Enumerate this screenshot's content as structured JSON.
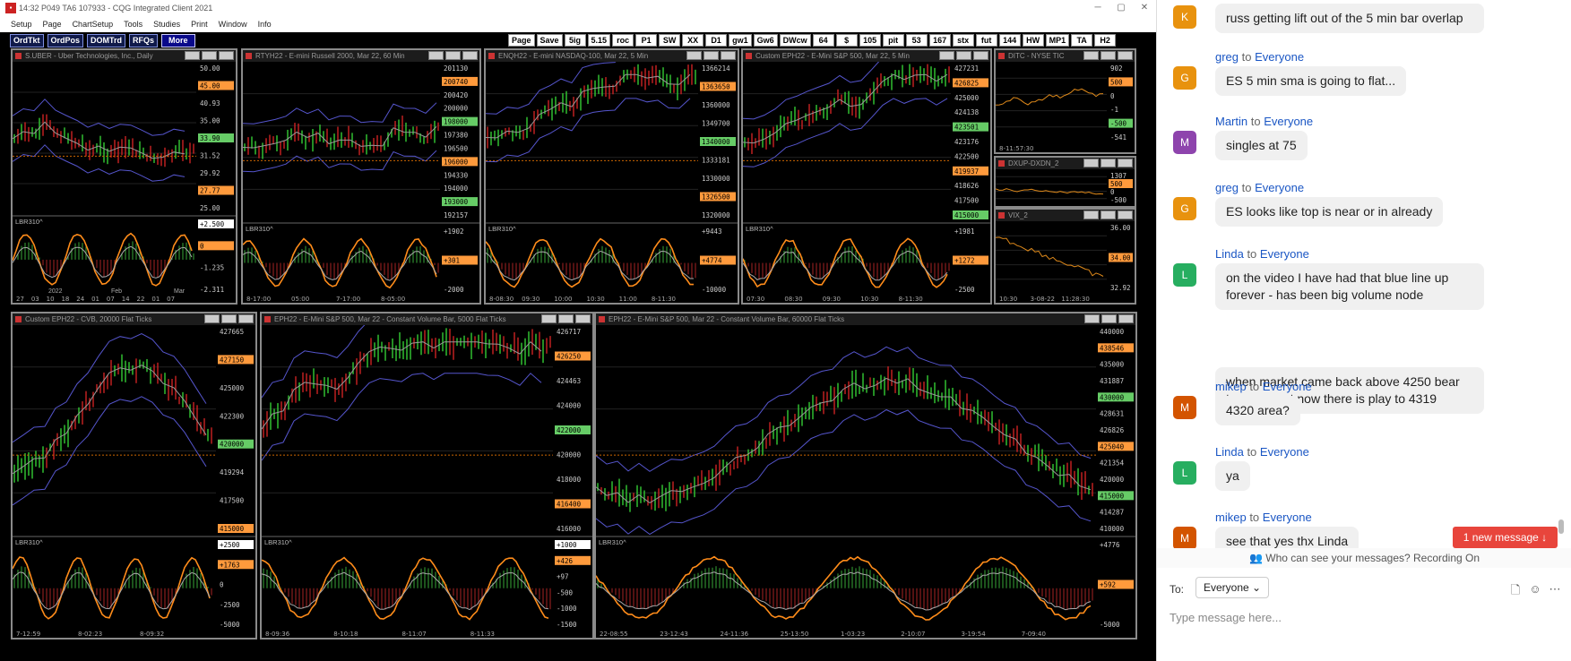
{
  "window": {
    "title": "14:32   P049 TA6   107933 - CQG Integrated Client 2021",
    "controls": [
      "─",
      "▢",
      "✕"
    ]
  },
  "menu": [
    "Setup",
    "Page",
    "ChartSetup",
    "Tools",
    "Studies",
    "Print",
    "Window",
    "Info"
  ],
  "toolbar_left": [
    "OrdTkt",
    "OrdPos",
    "DOMTrd",
    "RFQs",
    "More"
  ],
  "toolbar_right": [
    "Page",
    "Save",
    "5ig",
    "5.15",
    "roc",
    "P1",
    "SW",
    "XX",
    "D1",
    "gw1",
    "Gw6",
    "DWcw",
    "64",
    "$",
    "105",
    "pit",
    "53",
    "167",
    "stx",
    "fut",
    "144",
    "HW",
    "MP1",
    "TA",
    "H2"
  ],
  "charts": [
    {
      "id": "uber",
      "title": "S.UBER - Uber Technologies, Inc., Daily",
      "study": "LBR310^",
      "axis": [
        "50.00",
        "45.00",
        "40.93",
        "35.00",
        "33.90",
        "31.52",
        "29.92",
        "27.77",
        "25.00"
      ],
      "osc_axis": [
        "+2.500",
        "0",
        "-1.235",
        "-2.311"
      ],
      "time": [
        "27",
        "03",
        "10",
        "18",
        "24",
        "01",
        "07",
        "14",
        "22",
        "01",
        "07"
      ],
      "time2": [
        "2022",
        "Feb",
        "Mar"
      ]
    },
    {
      "id": "rty",
      "title": "RTYH22 - E-mini Russell 2000, Mar 22, 60 Min",
      "study": "LBR310^",
      "axis": [
        "201130",
        "200740",
        "200420",
        "200000",
        "198000",
        "197380",
        "196500",
        "196000",
        "194330",
        "194000",
        "193000",
        "192157"
      ],
      "osc_axis": [
        "+1902",
        "+301",
        "-2000"
      ],
      "time": [
        "8-17:00",
        "05:00",
        "7-17:00",
        "8-05:00"
      ]
    },
    {
      "id": "enq",
      "title": "ENQH22 - E-mini NASDAQ-100, Mar 22, 5 Min",
      "study": "LBR310^",
      "axis": [
        "1366214",
        "1363650",
        "1360000",
        "1349700",
        "1340000",
        "1333181",
        "1330000",
        "1326500",
        "1320000"
      ],
      "osc_axis": [
        "+9443",
        "+4774",
        "-10000"
      ],
      "time": [
        "8-08:30",
        "09:30",
        "10:00",
        "10:30",
        "11:00",
        "8-11:30"
      ]
    },
    {
      "id": "ep5",
      "title": "Custom EPH22 - E-Mini S&P 500, Mar 22, 5 Min",
      "study": "LBR310^",
      "axis": [
        "427231",
        "426825",
        "425000",
        "424138",
        "423501",
        "423176",
        "422500",
        "419937",
        "418626",
        "417500",
        "415000"
      ],
      "osc_axis": [
        "+1981",
        "+1272",
        "-2500"
      ],
      "time": [
        "07:30",
        "08:30",
        "09:30",
        "10:30",
        "8-11:30"
      ]
    },
    {
      "id": "ditc",
      "title": "DITC - NYSE TIC",
      "axis": [
        "902",
        "500",
        "0",
        "-1",
        "-500",
        "-541"
      ],
      "time": [
        "8-11:57:30"
      ]
    },
    {
      "id": "dxup",
      "title": "DXUP-DXDN_2",
      "axis": [
        "1307",
        "500",
        "0",
        "-500"
      ]
    },
    {
      "id": "vix",
      "title": "VIX_2",
      "axis": [
        "36.00",
        "34.00",
        "32.92"
      ],
      "time": [
        "10:30",
        "3-08-22",
        "11:28:30"
      ]
    },
    {
      "id": "cvb20",
      "title": "Custom EPH22 - CVB, 20000 Flat Ticks",
      "study": "LBR310^",
      "axis": [
        "427665",
        "427150",
        "425000",
        "422300",
        "420000",
        "419294",
        "417500",
        "415000"
      ],
      "osc_axis": [
        "+2500",
        "+1763",
        "0",
        "-2500",
        "-5000"
      ],
      "time": [
        "7-12:59",
        "8-02:23",
        "8-09:32"
      ]
    },
    {
      "id": "cvb5",
      "title": "EPH22 - E-Mini S&P 500, Mar 22 - Constant Volume Bar, 5000 Flat Ticks",
      "study": "LBR310^",
      "axis": [
        "426717",
        "426250",
        "424463",
        "424000",
        "422000",
        "420000",
        "418000",
        "416400",
        "416000"
      ],
      "osc_axis": [
        "+1000",
        "+426",
        "+97",
        "-500",
        "-1000",
        "-1500"
      ],
      "time": [
        "8-09:36",
        "8-10:18",
        "8-11:07",
        "8-11:33"
      ]
    },
    {
      "id": "cvb60",
      "title": "EPH22 - E-Mini S&P 500, Mar 22 - Constant Volume Bar, 60000 Flat Ticks",
      "study": "LBR310^",
      "axis": [
        "440000",
        "438546",
        "435000",
        "431887",
        "430000",
        "428631",
        "426826",
        "425040",
        "421354",
        "420000",
        "415000",
        "414287",
        "410000"
      ],
      "osc_axis": [
        "+4776",
        "+592",
        "-5000"
      ],
      "time": [
        "22-08:55",
        "23-12:43",
        "24-11:36",
        "25-13:50",
        "1-03:23",
        "2-10:07",
        "3-19:54",
        "7-09:40"
      ]
    }
  ],
  "chat": {
    "messages": [
      {
        "from": "",
        "to": "",
        "initial": "K",
        "color": "#e8920e",
        "texts": [
          "russ getting lift out of the 5 min bar overlap"
        ]
      },
      {
        "from": "greg",
        "to": "Everyone",
        "initial": "G",
        "color": "#e8920e",
        "texts": [
          "ES 5 min sma is going to flat..."
        ]
      },
      {
        "from": "Martin",
        "to": "Everyone",
        "initial": "M",
        "color": "#8e44ad",
        "texts": [
          "singles at 75"
        ]
      },
      {
        "from": "greg",
        "to": "Everyone",
        "initial": "G",
        "color": "#e8920e",
        "texts": [
          "ES looks like top is near or in already"
        ]
      },
      {
        "from": "Linda",
        "to": "Everyone",
        "initial": "L",
        "color": "#27ae60",
        "texts": [
          "on the  video  I have had that blue line   up forever - has been  big volume  node",
          "when market came back above 4250    bear trap was set    now there is play to 4319"
        ]
      },
      {
        "from": "mikep",
        "to": "Everyone",
        "initial": "M",
        "color": "#d35400",
        "texts": [
          "4320 area?"
        ]
      },
      {
        "from": "Linda",
        "to": "Everyone",
        "initial": "L",
        "color": "#27ae60",
        "texts": [
          "ya"
        ]
      },
      {
        "from": "mikep",
        "to": "Everyone",
        "initial": "M",
        "color": "#d35400",
        "texts": [
          "see that yes thx Linda"
        ]
      }
    ],
    "to_word": "to",
    "new_message": "1 new message ↓",
    "visibility": "Who can see your messages? Recording On",
    "to_label": "To:",
    "recipient": "Everyone",
    "placeholder": "Type message here..."
  }
}
